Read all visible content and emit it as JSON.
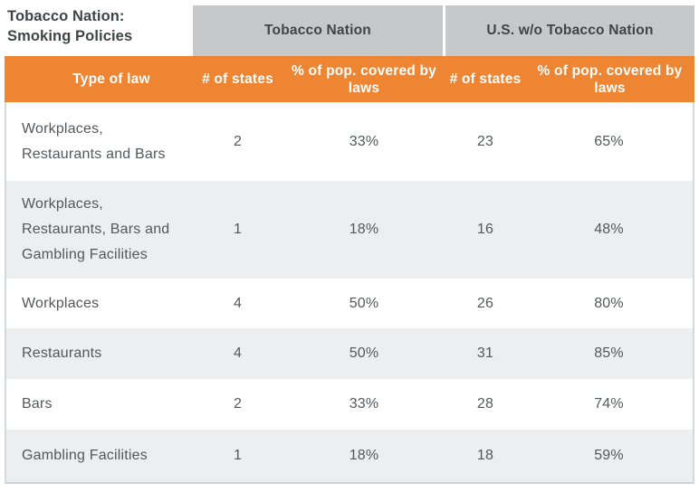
{
  "title": "Tobacco Nation:\nSmoking Policies",
  "groups": {
    "tobacco_nation": "Tobacco Nation",
    "us_without": "U.S. w/o Tobacco Nation"
  },
  "columns": {
    "type_of_law": "Type of law",
    "tn_states": "# of states",
    "tn_pct": "% of pop. covered by laws",
    "us_states": "# of states",
    "us_pct": "% of pop. covered by laws"
  },
  "rows": [
    {
      "label": "Workplaces,\nRestaurants and Bars",
      "tn_states": "2",
      "tn_pct": "33%",
      "us_states": "23",
      "us_pct": "65%"
    },
    {
      "label": "Workplaces,\nRestaurants, Bars and\nGambling Facilities",
      "tn_states": "1",
      "tn_pct": "18%",
      "us_states": "16",
      "us_pct": "48%"
    },
    {
      "label": "Workplaces",
      "tn_states": "4",
      "tn_pct": "50%",
      "us_states": "26",
      "us_pct": "80%"
    },
    {
      "label": "Restaurants",
      "tn_states": "4",
      "tn_pct": "50%",
      "us_states": "31",
      "us_pct": "85%"
    },
    {
      "label": "Bars",
      "tn_states": "2",
      "tn_pct": "33%",
      "us_states": "28",
      "us_pct": "74%"
    },
    {
      "label": "Gambling Facilities",
      "tn_states": "1",
      "tn_pct": "18%",
      "us_states": "18",
      "us_pct": "59%"
    }
  ],
  "colors": {
    "accent_orange": "#ee8533",
    "group_gray": "#c5c9ca",
    "alt_row_gray": "#eceeef",
    "title_text": "#3f4447",
    "body_text": "#54585a",
    "border": "#d6d9da"
  },
  "chart_data": {
    "type": "table",
    "title": "Tobacco Nation: Smoking Policies",
    "column_groups": [
      "Tobacco Nation",
      "U.S. w/o Tobacco Nation"
    ],
    "columns": [
      "Type of law",
      "# of states (Tobacco Nation)",
      "% of pop. covered by laws (Tobacco Nation)",
      "# of states (U.S. w/o Tobacco Nation)",
      "% of pop. covered by laws (U.S. w/o Tobacco Nation)"
    ],
    "rows": [
      [
        "Workplaces, Restaurants and Bars",
        2,
        "33%",
        23,
        "65%"
      ],
      [
        "Workplaces, Restaurants, Bars and Gambling Facilities",
        1,
        "18%",
        16,
        "48%"
      ],
      [
        "Workplaces",
        4,
        "50%",
        26,
        "80%"
      ],
      [
        "Restaurants",
        4,
        "50%",
        31,
        "85%"
      ],
      [
        "Bars",
        2,
        "33%",
        28,
        "74%"
      ],
      [
        "Gambling Facilities",
        1,
        "18%",
        18,
        "59%"
      ]
    ]
  }
}
